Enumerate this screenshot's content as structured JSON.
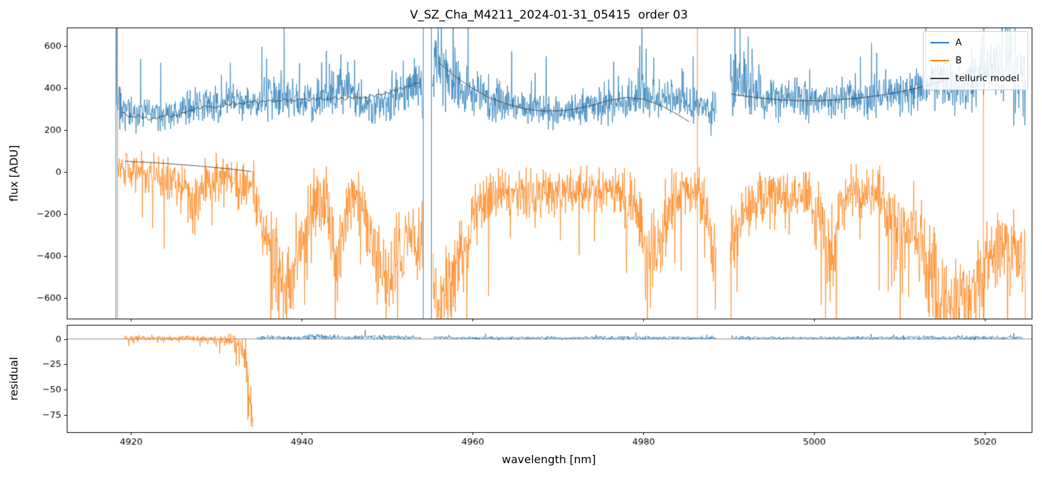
{
  "chart_data": [
    {
      "type": "line",
      "panel": "flux",
      "title": "V_SZ_Cha_M4211_2024-01-31_05415  order 03",
      "ylabel": "flux [ADU]",
      "xlim": [
        4912.5,
        5025.5
      ],
      "ylim": [
        -700,
        690
      ],
      "yticks": [
        600,
        400,
        200,
        0,
        -200,
        -400,
        -600
      ],
      "xticks": [
        4920,
        4940,
        4960,
        4980,
        5000,
        5020
      ],
      "show_xticklabels": false,
      "legend": {
        "position": "upper right",
        "entries": [
          "A",
          "B",
          "telluric model"
        ]
      },
      "series": [
        {
          "name": "A",
          "color": "#1f77b4",
          "style": "noisy",
          "seed": 3,
          "spike_sign": 1,
          "spike_prob": 0.02,
          "segments": [
            {
              "x": [
                4918.3,
                4920,
                4922,
                4924,
                4926,
                4928,
                4930,
                4932,
                4934,
                4936,
                4937.5,
                4939,
                4941,
                4943,
                4944.5,
                4946,
                4948,
                4950,
                4952,
                4953.5,
                4954.2
              ],
              "mean": [
                300,
                280,
                285,
                270,
                290,
                320,
                330,
                345,
                330,
                355,
                380,
                340,
                330,
                380,
                400,
                340,
                320,
                340,
                400,
                430,
                390
              ],
              "amp": [
                90,
                62,
                60,
                60,
                60,
                62,
                65,
                65,
                62,
                80,
                92,
                70,
                66,
                86,
                96,
                70,
                66,
                76,
                95,
                110,
                100
              ]
            },
            {
              "x": [
                4955.3,
                4956,
                4957,
                4958.5,
                4960,
                4962,
                4964,
                4966,
                4968,
                4970,
                4972,
                4974,
                4976,
                4978,
                4980,
                4982,
                4984,
                4986,
                4987.5,
                4988.6
              ],
              "mean": [
                540,
                505,
                465,
                420,
                390,
                355,
                325,
                300,
                290,
                288,
                295,
                310,
                330,
                352,
                362,
                345,
                330,
                310,
                295,
                285
              ],
              "amp": [
                170,
                150,
                125,
                100,
                90,
                76,
                68,
                60,
                58,
                58,
                60,
                64,
                70,
                80,
                85,
                75,
                70,
                65,
                62,
                75
              ]
            },
            {
              "x": [
                4990.2,
                4991,
                4992.5,
                4994,
                4996,
                4998,
                5000,
                5002,
                5004,
                5006,
                5008,
                5010,
                5012,
                5014,
                5016,
                5018,
                5019.5,
                5021,
                5022.5,
                5024,
                5024.8
              ],
              "mean": [
                430,
                405,
                380,
                365,
                350,
                345,
                342,
                345,
                350,
                358,
                368,
                380,
                392,
                405,
                420,
                445,
                465,
                490,
                510,
                465,
                445
              ],
              "amp": [
                160,
                125,
                100,
                85,
                76,
                72,
                70,
                70,
                72,
                74,
                76,
                80,
                85,
                92,
                100,
                115,
                130,
                160,
                185,
                150,
                140
              ]
            }
          ]
        },
        {
          "name": "B",
          "color": "#ff7f0e",
          "style": "noisy",
          "seed": 7,
          "spike_sign": -1,
          "spike_prob": 0.03,
          "segments": [
            {
              "x": [
                4918.4,
                4919.5,
                4921,
                4923,
                4925,
                4926.5,
                4927.3,
                4928.2,
                4930,
                4932,
                4934,
                4935.5,
                4937,
                4938.5,
                4940,
                4941.5,
                4943,
                4944.3,
                4945.5,
                4947,
                4948.5,
                4950,
                4951.5,
                4953,
                4954.2
              ],
              "mean": [
                20,
                15,
                -15,
                -25,
                -45,
                -70,
                -160,
                -60,
                -35,
                -45,
                -70,
                -220,
                -480,
                -560,
                -360,
                -130,
                -170,
                -430,
                -130,
                -110,
                -380,
                -520,
                -430,
                -260,
                -430
              ],
              "amp": [
                60,
                70,
                70,
                72,
                80,
                85,
                120,
                85,
                80,
                80,
                90,
                130,
                150,
                150,
                140,
                110,
                120,
                150,
                110,
                100,
                150,
                160,
                150,
                130,
                160
              ]
            },
            {
              "x": [
                4955.4,
                4956.2,
                4957,
                4958,
                4959.5,
                4961,
                4963,
                4965,
                4967,
                4969,
                4971,
                4973,
                4975,
                4977,
                4979,
                4980.8,
                4982,
                4983.5,
                4985,
                4986.5,
                4987.5,
                4988.6
              ],
              "mean": [
                -620,
                -640,
                -560,
                -450,
                -300,
                -160,
                -100,
                -90,
                -130,
                -90,
                -80,
                -90,
                -85,
                -95,
                -150,
                -420,
                -350,
                -120,
                -85,
                -95,
                -200,
                -480
              ],
              "amp": [
                160,
                160,
                160,
                150,
                130,
                110,
                85,
                80,
                100,
                80,
                78,
                80,
                80,
                85,
                110,
                160,
                150,
                100,
                80,
                85,
                120,
                160
              ]
            },
            {
              "x": [
                4990.2,
                4991.5,
                4993,
                4994.5,
                4996,
                4997.5,
                4999,
                5000.3,
                5001.8,
                5003.2,
                5004.6,
                5006,
                5007.5,
                5009,
                5010.3,
                5011.6,
                5013,
                5014.3,
                5015.6,
                5017,
                5018.3,
                5019.6,
                5021,
                5022.3,
                5023.6,
                5024.8
              ],
              "mean": [
                -350,
                -200,
                -130,
                -110,
                -120,
                -140,
                -110,
                -170,
                -400,
                -160,
                -100,
                -110,
                -130,
                -180,
                -300,
                -230,
                -420,
                -560,
                -640,
                -600,
                -650,
                -520,
                -380,
                -360,
                -400,
                -380
              ],
              "amp": [
                150,
                120,
                100,
                95,
                100,
                105,
                100,
                115,
                160,
                110,
                90,
                90,
                100,
                120,
                140,
                130,
                150,
                160,
                160,
                160,
                160,
                150,
                130,
                125,
                135,
                130
              ]
            }
          ]
        },
        {
          "name": "telluric model",
          "color": "#3a3a3a",
          "style": "smooth",
          "seed": 13,
          "segments": [
            {
              "x": [
                4919,
                4920,
                4921,
                4922,
                4923,
                4924,
                4925,
                4926,
                4927,
                4928,
                4929,
                4930,
                4931,
                4932,
                4933,
                4934,
                4935,
                4936,
                4937,
                4938,
                4939,
                4940,
                4941,
                4942,
                4943,
                4944,
                4945,
                4946,
                4947,
                4948,
                4949,
                4950,
                4951,
                4952,
                4953,
                4954
              ],
              "y": [
                285,
                262,
                268,
                252,
                258,
                272,
                265,
                280,
                295,
                308,
                315,
                308,
                318,
                330,
                325,
                338,
                332,
                342,
                336,
                346,
                340,
                350,
                344,
                352,
                346,
                355,
                348,
                358,
                352,
                362,
                368,
                378,
                390,
                402,
                418,
                432
              ],
              "wiggle_amp": 6,
              "wiggle_period": 0.85
            },
            {
              "x": [
                4919.3,
                4921,
                4923,
                4925,
                4927,
                4929,
                4931,
                4933,
                4934.2
              ],
              "y": [
                52,
                48,
                44,
                38,
                32,
                25,
                17,
                8,
                2
              ]
            },
            {
              "x": [
                4956,
                4958,
                4960,
                4962,
                4964,
                4966,
                4968,
                4970,
                4972,
                4974,
                4976,
                4978,
                4980,
                4982,
                4984,
                4985.5
              ],
              "y": [
                525,
                455,
                400,
                355,
                325,
                303,
                292,
                292,
                300,
                318,
                342,
                356,
                348,
                320,
                275,
                238
              ]
            },
            {
              "x": [
                4990.3,
                4992,
                4994,
                4996,
                4998,
                5000,
                5002,
                5004,
                5006,
                5008,
                5010,
                5012,
                5014,
                5016,
                5018,
                5019.3
              ],
              "y": [
                372,
                362,
                352,
                345,
                341,
                340,
                343,
                349,
                357,
                368,
                382,
                400,
                422,
                448,
                478,
                495
              ]
            }
          ]
        }
      ],
      "vlines": [
        {
          "x": 4918.25,
          "color": "#1f77b4"
        },
        {
          "x": 4918.45,
          "color": "#ff7f0e"
        },
        {
          "x": 4954.25,
          "color": "#1f77b4"
        },
        {
          "x": 4955.2,
          "color": "#1f77b4"
        },
        {
          "x": 4986.35,
          "color": "#ff7f0e"
        },
        {
          "x": 5019.85,
          "color": "#ff7f0e"
        }
      ]
    },
    {
      "type": "line",
      "panel": "residual",
      "ylabel": "residual",
      "xlabel": "wavelength [nm]",
      "xlim": [
        4912.5,
        5025.5
      ],
      "ylim": [
        -92,
        14
      ],
      "yticks": [
        0,
        -25,
        -50,
        -75
      ],
      "xticks": [
        4920,
        4940,
        4960,
        4980,
        5000,
        5020
      ],
      "show_xticklabels": true,
      "hlines": [
        {
          "y": 0,
          "color": "#808080"
        }
      ],
      "series": [
        {
          "name": "A residual",
          "color": "#1f77b4",
          "style": "noisy",
          "seed": 5,
          "spike_sign": 1,
          "spike_prob": 0.01,
          "segments": [
            {
              "x": [
                4934.8,
                4938,
                4942,
                4946,
                4950,
                4954.0
              ],
              "mean": [
                1.5,
                1.2,
                2.0,
                1.3,
                1.8,
                1.5
              ],
              "amp": [
                1.6,
                1.2,
                2.2,
                1.4,
                2.0,
                1.6
              ]
            },
            {
              "x": [
                4955.5,
                4960,
                4966,
                4972,
                4978,
                4984,
                4988.5
              ],
              "mean": [
                1.3,
                1.0,
                1.1,
                1.0,
                1.4,
                1.1,
                1.0
              ],
              "amp": [
                1.6,
                1.1,
                1.2,
                1.0,
                1.6,
                1.2,
                1.1
              ]
            },
            {
              "x": [
                4990.3,
                4996,
                5002,
                5008,
                5014,
                5020,
                5024.5
              ],
              "mean": [
                1.3,
                1.0,
                1.0,
                1.2,
                1.4,
                1.3,
                1.2
              ],
              "amp": [
                1.5,
                1.0,
                1.0,
                1.2,
                1.6,
                1.4,
                1.2
              ]
            }
          ]
        },
        {
          "name": "B residual",
          "color": "#ff7f0e",
          "style": "noisy",
          "seed": 9,
          "spike_sign": -1,
          "spike_prob": 0.03,
          "segments": [
            {
              "x": [
                4919.2,
                4922,
                4925,
                4928,
                4930,
                4931.5,
                4932.5,
                4933.0,
                4933.4,
                4933.8,
                4934.1,
                4934.35
              ],
              "mean": [
                0.8,
                0.5,
                0.8,
                0.2,
                -0.3,
                -1.5,
                -3,
                -8,
                -20,
                -45,
                -70,
                -88
              ],
              "amp": [
                2.2,
                2.4,
                2.2,
                2.6,
                3,
                4.5,
                7,
                12,
                22,
                28,
                18,
                5
              ]
            }
          ]
        }
      ]
    }
  ]
}
